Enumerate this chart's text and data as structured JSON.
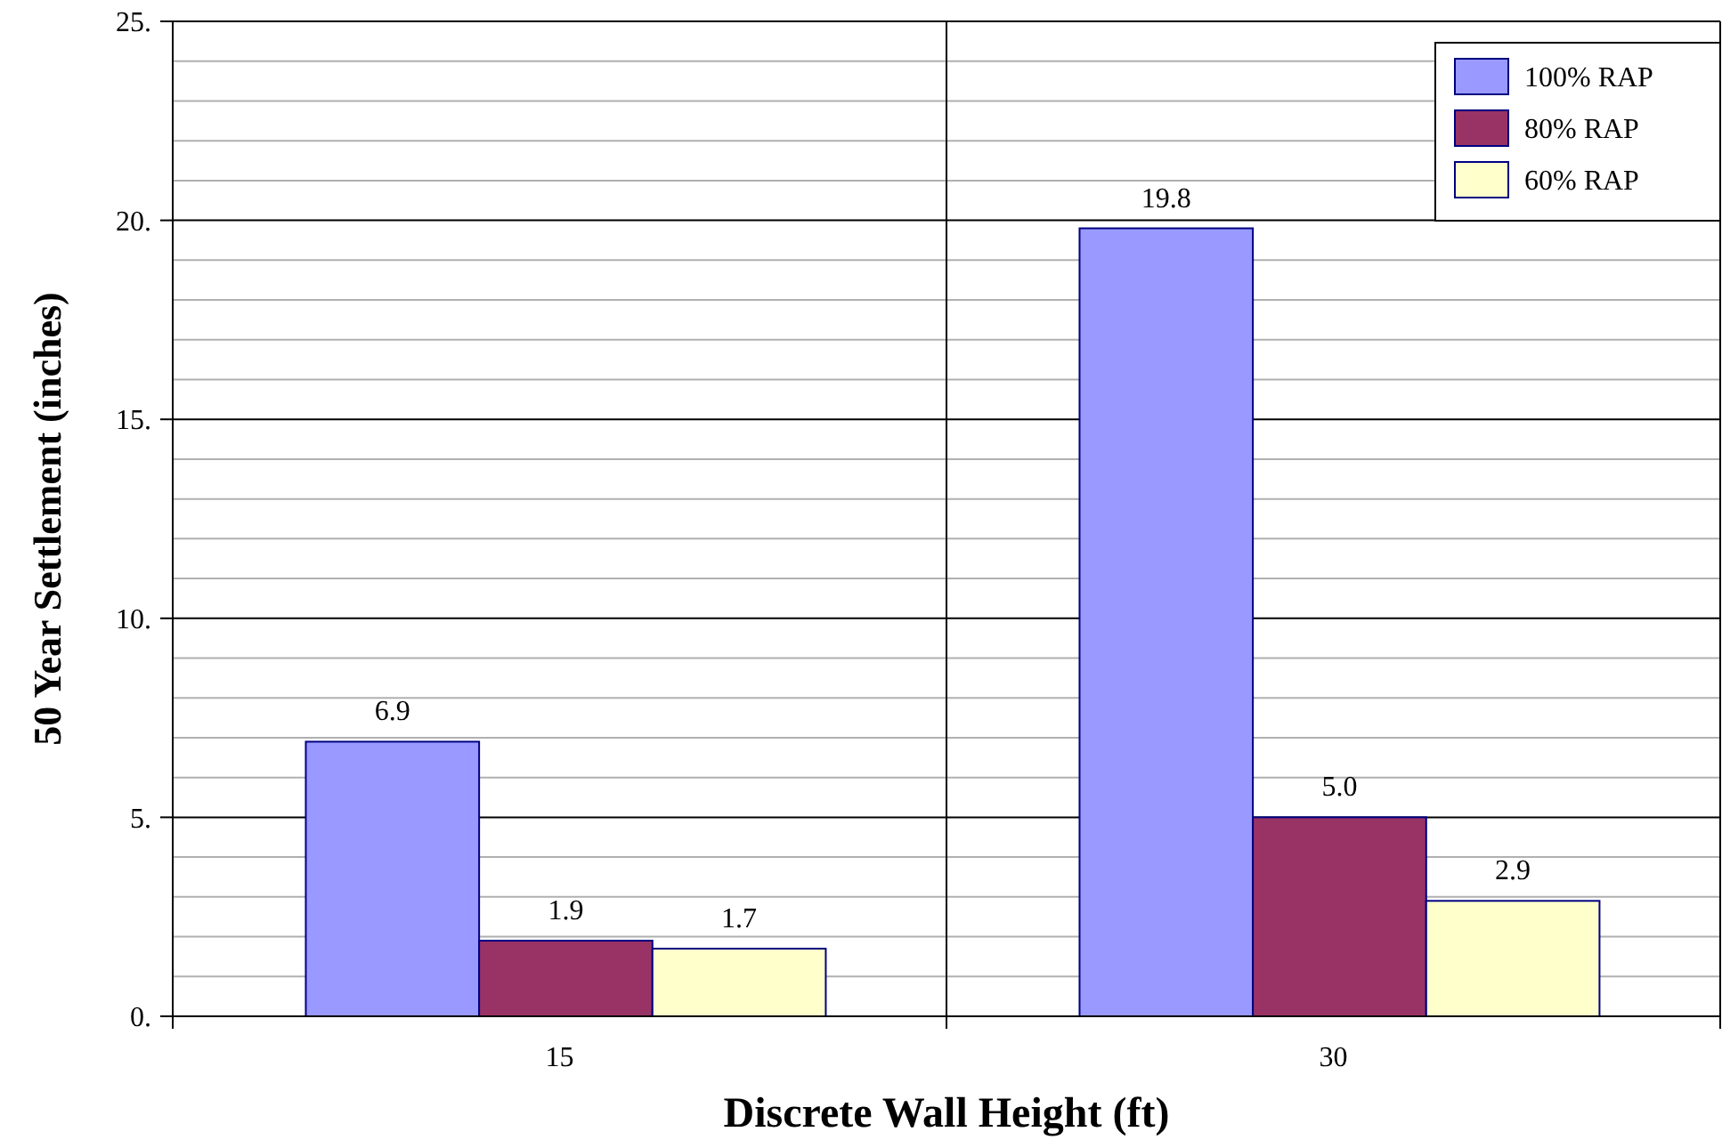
{
  "chart_data": {
    "type": "bar",
    "xlabel": "Discrete Wall Height (ft)",
    "ylabel": "50 Year Settlement (inches)",
    "categories": [
      "15",
      "30"
    ],
    "series": [
      {
        "name": "100% RAP",
        "color": "#9999ff",
        "values": [
          6.9,
          19.8
        ],
        "value_labels": [
          "6.9",
          "19.8"
        ]
      },
      {
        "name": "80% RAP",
        "color": "#993366",
        "values": [
          1.9,
          5.0
        ],
        "value_labels": [
          "1.9",
          "5.0"
        ]
      },
      {
        "name": "60% RAP",
        "color": "#ffffcc",
        "values": [
          1.7,
          2.9
        ],
        "value_labels": [
          "1.7",
          "2.9"
        ]
      }
    ],
    "ylim": [
      0,
      25
    ],
    "yticks": [
      {
        "value": 0,
        "label": "0."
      },
      {
        "value": 1,
        "label": null
      },
      {
        "value": 2,
        "label": null
      },
      {
        "value": 3,
        "label": null
      },
      {
        "value": 4,
        "label": null
      },
      {
        "value": 5,
        "label": "5."
      },
      {
        "value": 6,
        "label": null
      },
      {
        "value": 7,
        "label": null
      },
      {
        "value": 8,
        "label": null
      },
      {
        "value": 9,
        "label": null
      },
      {
        "value": 10,
        "label": "10."
      },
      {
        "value": 11,
        "label": null
      },
      {
        "value": 12,
        "label": null
      },
      {
        "value": 13,
        "label": null
      },
      {
        "value": 14,
        "label": null
      },
      {
        "value": 15,
        "label": "15."
      },
      {
        "value": 16,
        "label": null
      },
      {
        "value": 17,
        "label": null
      },
      {
        "value": 18,
        "label": null
      },
      {
        "value": 19,
        "label": null
      },
      {
        "value": 20,
        "label": "20."
      },
      {
        "value": 21,
        "label": null
      },
      {
        "value": 22,
        "label": null
      },
      {
        "value": 23,
        "label": null
      },
      {
        "value": 24,
        "label": null
      },
      {
        "value": 25,
        "label": "25."
      }
    ],
    "grid": true,
    "legend": "top right"
  }
}
